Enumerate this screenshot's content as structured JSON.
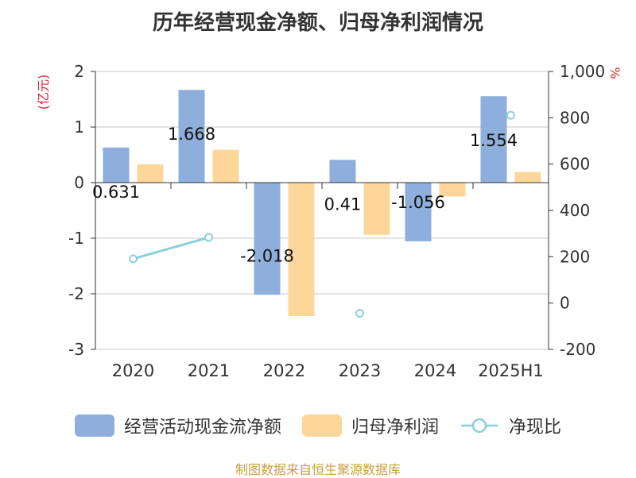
{
  "title": "历年经营现金净额、归母净利润情况",
  "source": "制图数据来自恒生聚源数据库",
  "colors": {
    "ocf": "#8eaedb",
    "profit": "#fdd69a",
    "ratio": "#8ad0db",
    "unit": "#d9262b",
    "text": "#333333",
    "grid": "#c8c8c8",
    "source": "#c8a040"
  },
  "legend": [
    {
      "label": "经营活动现金流净额",
      "icon": "bar-swatch"
    },
    {
      "label": "归母净利润",
      "icon": "bar-swatch"
    },
    {
      "label": "净现比",
      "icon": "line-circle-marker"
    }
  ],
  "chart_data": {
    "type": "bar",
    "categories": [
      "2020",
      "2021",
      "2022",
      "2023",
      "2024",
      "2025H1"
    ],
    "ylabel": "(亿元)",
    "ylabel_right": "%",
    "ylim": [
      -3,
      2
    ],
    "ylim_right": [
      -200,
      1000
    ],
    "yticks": [
      "2",
      "1",
      "0",
      "-1",
      "-2",
      "-3"
    ],
    "yticks_right": [
      "1,000",
      "800",
      "600",
      "400",
      "200",
      "0",
      "-200"
    ],
    "grid": true,
    "legend_position": "bottom",
    "series": [
      {
        "name": "经营活动现金流净额",
        "type": "bar",
        "axis": "left",
        "values": [
          0.631,
          1.668,
          -2.018,
          0.41,
          -1.056,
          1.554
        ],
        "labels": [
          "0.631",
          "1.668",
          "-2.018",
          "0.41",
          "-1.056",
          "1.554"
        ]
      },
      {
        "name": "归母净利润",
        "type": "bar",
        "axis": "left",
        "values": [
          0.33,
          0.59,
          -2.4,
          -0.94,
          -0.25,
          0.19
        ]
      },
      {
        "name": "净现比",
        "type": "line",
        "axis": "right",
        "values": [
          191,
          283,
          null,
          -44,
          null,
          811
        ]
      }
    ]
  }
}
